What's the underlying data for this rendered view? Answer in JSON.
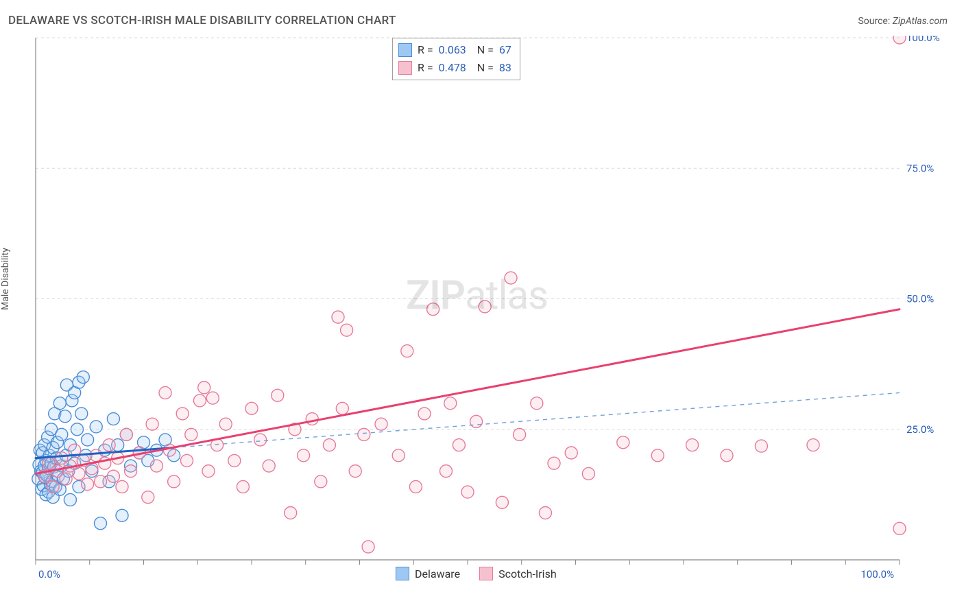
{
  "title": "DELAWARE VS SCOTCH-IRISH MALE DISABILITY CORRELATION CHART",
  "source_label": "Source:",
  "source_name": "ZipAtlas.com",
  "ylabel": "Male Disability",
  "watermark_a": "ZIP",
  "watermark_b": "atlas",
  "chart": {
    "type": "scatter",
    "xlim": [
      0,
      100
    ],
    "ylim": [
      0,
      100
    ],
    "x_tick_major": [
      0,
      100
    ],
    "y_tick_major": [
      25,
      50,
      75,
      100
    ],
    "x_tick_minor_step": 6.25,
    "y_tick_minor_step": 25,
    "grid_color": "#dadada",
    "axis_color": "#888888",
    "background_color": "#ffffff",
    "tick_label_color": "#2a5db8",
    "tick_label_fontsize": 15,
    "x_tick_labels": {
      "0": "0.0%",
      "100": "100.0%"
    },
    "y_tick_labels": {
      "25": "25.0%",
      "50": "50.0%",
      "75": "75.0%",
      "100": "100.0%"
    },
    "marker_radius": 9,
    "marker_stroke_width": 1.4,
    "marker_fill_opacity": 0.28,
    "series": [
      {
        "name": "Delaware",
        "color_fill": "#9ec8f4",
        "color_stroke": "#4a8dd6",
        "R": "0.063",
        "N": "67",
        "trend": {
          "solid": {
            "x1": 0,
            "y1": 19.5,
            "x2": 16,
            "y2": 21.5,
            "color": "#1e63c4",
            "width": 3
          },
          "dashed": {
            "x1": 16,
            "y1": 21.5,
            "x2": 100,
            "y2": 32.0,
            "color": "#6fa0d8",
            "width": 1.4,
            "dash": "6 6"
          }
        },
        "points": [
          [
            0.3,
            15.5
          ],
          [
            0.4,
            18.2
          ],
          [
            0.5,
            21.0
          ],
          [
            0.6,
            17.0
          ],
          [
            0.7,
            13.5
          ],
          [
            0.8,
            16.8
          ],
          [
            0.8,
            20.5
          ],
          [
            0.9,
            14.2
          ],
          [
            1.0,
            18.0
          ],
          [
            1.0,
            22.0
          ],
          [
            1.1,
            15.8
          ],
          [
            1.2,
            12.5
          ],
          [
            1.2,
            19.0
          ],
          [
            1.3,
            16.2
          ],
          [
            1.4,
            23.5
          ],
          [
            1.5,
            13.0
          ],
          [
            1.5,
            17.5
          ],
          [
            1.6,
            20.0
          ],
          [
            1.7,
            14.5
          ],
          [
            1.8,
            18.5
          ],
          [
            1.8,
            25.0
          ],
          [
            1.9,
            15.0
          ],
          [
            2.0,
            12.0
          ],
          [
            2.0,
            21.5
          ],
          [
            2.1,
            17.8
          ],
          [
            2.2,
            28.0
          ],
          [
            2.3,
            14.0
          ],
          [
            2.4,
            19.5
          ],
          [
            2.5,
            22.5
          ],
          [
            2.6,
            16.0
          ],
          [
            2.8,
            30.0
          ],
          [
            2.8,
            13.5
          ],
          [
            3.0,
            24.0
          ],
          [
            3.0,
            18.0
          ],
          [
            3.2,
            15.5
          ],
          [
            3.4,
            27.5
          ],
          [
            3.5,
            20.0
          ],
          [
            3.6,
            33.5
          ],
          [
            3.8,
            17.0
          ],
          [
            4.0,
            22.0
          ],
          [
            4.0,
            11.5
          ],
          [
            4.2,
            30.5
          ],
          [
            4.5,
            18.5
          ],
          [
            4.5,
            32.0
          ],
          [
            4.8,
            25.0
          ],
          [
            5.0,
            34.0
          ],
          [
            5.0,
            14.0
          ],
          [
            5.3,
            28.0
          ],
          [
            5.5,
            35.0
          ],
          [
            5.8,
            20.0
          ],
          [
            6.0,
            23.0
          ],
          [
            6.5,
            17.0
          ],
          [
            7.0,
            25.5
          ],
          [
            7.5,
            7.0
          ],
          [
            8.0,
            21.0
          ],
          [
            8.5,
            15.0
          ],
          [
            9.0,
            27.0
          ],
          [
            9.5,
            22.0
          ],
          [
            10.0,
            8.5
          ],
          [
            10.5,
            24.0
          ],
          [
            11.0,
            18.0
          ],
          [
            12.0,
            20.5
          ],
          [
            12.5,
            22.5
          ],
          [
            13.0,
            19.0
          ],
          [
            14.0,
            21.0
          ],
          [
            15.0,
            23.0
          ],
          [
            16.0,
            20.0
          ]
        ]
      },
      {
        "name": "Scotch-Irish",
        "color_fill": "#f6c1ce",
        "color_stroke": "#e87a9a",
        "R": "0.478",
        "N": "83",
        "trend": {
          "solid": {
            "x1": 0,
            "y1": 16.5,
            "x2": 100,
            "y2": 48.0,
            "color": "#e8416f",
            "width": 3
          },
          "dashed": null
        },
        "points": [
          [
            1.0,
            16.0
          ],
          [
            1.5,
            18.5
          ],
          [
            2.0,
            14.0
          ],
          [
            2.5,
            17.0
          ],
          [
            3.0,
            19.5
          ],
          [
            3.5,
            15.5
          ],
          [
            4.0,
            18.0
          ],
          [
            4.5,
            21.0
          ],
          [
            5.0,
            16.5
          ],
          [
            5.5,
            19.0
          ],
          [
            6.0,
            14.5
          ],
          [
            6.5,
            17.5
          ],
          [
            7.0,
            20.0
          ],
          [
            7.5,
            15.0
          ],
          [
            8.0,
            18.5
          ],
          [
            8.5,
            22.0
          ],
          [
            9.0,
            16.0
          ],
          [
            9.5,
            19.5
          ],
          [
            10.0,
            14.0
          ],
          [
            10.5,
            24.0
          ],
          [
            11.0,
            17.0
          ],
          [
            12.0,
            20.5
          ],
          [
            13.0,
            12.0
          ],
          [
            13.5,
            26.0
          ],
          [
            14.0,
            18.0
          ],
          [
            15.0,
            32.0
          ],
          [
            15.5,
            21.0
          ],
          [
            16.0,
            15.0
          ],
          [
            17.0,
            28.0
          ],
          [
            17.5,
            19.0
          ],
          [
            18.0,
            24.0
          ],
          [
            19.0,
            30.5
          ],
          [
            19.5,
            33.0
          ],
          [
            20.0,
            17.0
          ],
          [
            20.5,
            31.0
          ],
          [
            21.0,
            22.0
          ],
          [
            22.0,
            26.0
          ],
          [
            23.0,
            19.0
          ],
          [
            24.0,
            14.0
          ],
          [
            25.0,
            29.0
          ],
          [
            26.0,
            23.0
          ],
          [
            27.0,
            18.0
          ],
          [
            28.0,
            31.5
          ],
          [
            29.5,
            9.0
          ],
          [
            30.0,
            25.0
          ],
          [
            31.0,
            20.0
          ],
          [
            32.0,
            27.0
          ],
          [
            33.0,
            15.0
          ],
          [
            34.0,
            22.0
          ],
          [
            35.0,
            46.5
          ],
          [
            35.5,
            29.0
          ],
          [
            36.0,
            44.0
          ],
          [
            37.0,
            17.0
          ],
          [
            38.0,
            24.0
          ],
          [
            38.5,
            2.5
          ],
          [
            40.0,
            26.0
          ],
          [
            42.0,
            20.0
          ],
          [
            43.0,
            40.0
          ],
          [
            44.0,
            14.0
          ],
          [
            45.0,
            28.0
          ],
          [
            46.0,
            48.0
          ],
          [
            47.5,
            17.0
          ],
          [
            48.0,
            30.0
          ],
          [
            49.0,
            22.0
          ],
          [
            50.0,
            13.0
          ],
          [
            51.0,
            26.5
          ],
          [
            52.0,
            48.5
          ],
          [
            54.0,
            11.0
          ],
          [
            55.0,
            54.0
          ],
          [
            56.0,
            24.0
          ],
          [
            58.0,
            30.0
          ],
          [
            59.0,
            9.0
          ],
          [
            60.0,
            18.5
          ],
          [
            62.0,
            20.5
          ],
          [
            64.0,
            16.5
          ],
          [
            68.0,
            22.5
          ],
          [
            72.0,
            20.0
          ],
          [
            76.0,
            22.0
          ],
          [
            80.0,
            20.0
          ],
          [
            84.0,
            21.8
          ],
          [
            90.0,
            22.0
          ],
          [
            100.0,
            100.0
          ],
          [
            100.0,
            6.0
          ]
        ]
      }
    ]
  },
  "bottom_legend": [
    {
      "label": "Delaware",
      "fill": "#9ec8f4",
      "stroke": "#4a8dd6"
    },
    {
      "label": "Scotch-Irish",
      "fill": "#f6c1ce",
      "stroke": "#e87a9a"
    }
  ]
}
